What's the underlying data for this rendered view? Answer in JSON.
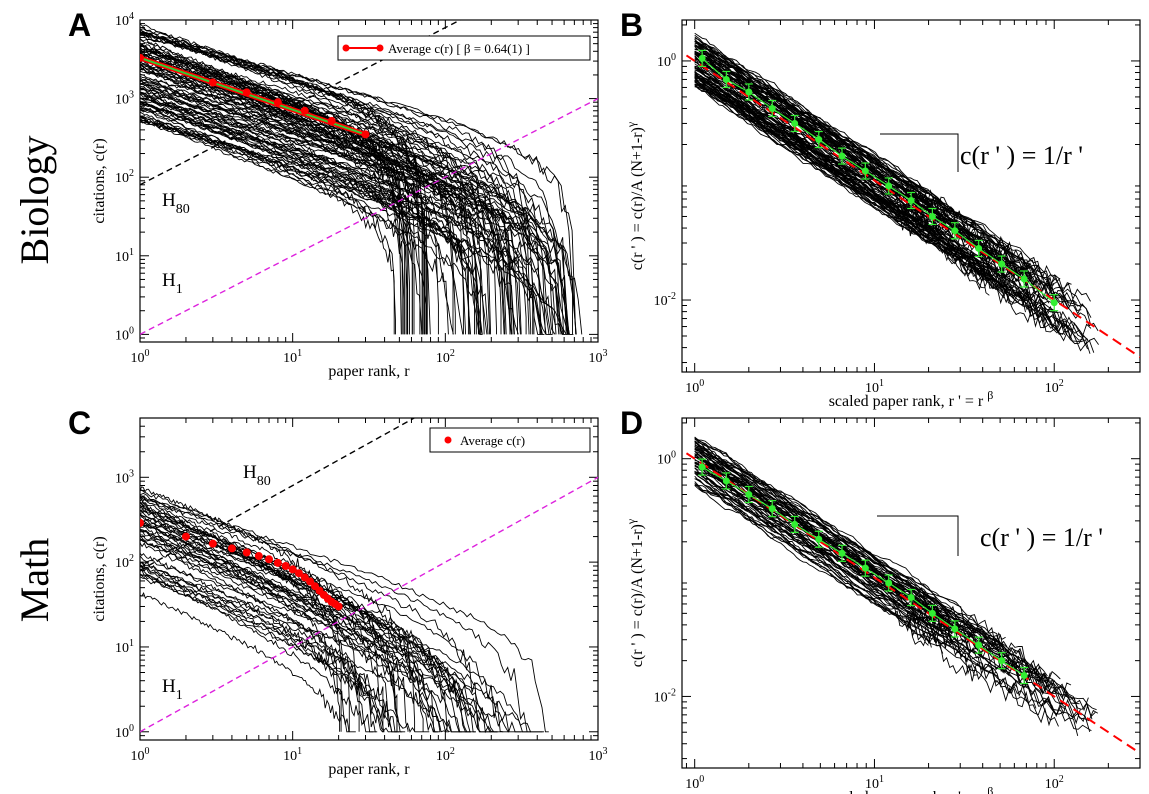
{
  "row_labels": [
    "Biology",
    "Math"
  ],
  "chart_data": [
    {
      "panel": "A",
      "type": "line",
      "xscale": "log",
      "yscale": "log",
      "xlim": [
        1,
        1000
      ],
      "ylim": [
        0.8,
        10000
      ],
      "xticks": [
        1,
        10,
        100,
        1000
      ],
      "yticks": [
        1,
        10,
        100,
        1000,
        10000
      ],
      "xlabel": "paper rank, r",
      "ylabel": "citations, c(r)",
      "legend": "Average c(r)  [ β = 0.64(1) ]",
      "legend_position": "top-right",
      "n_curves": 100,
      "curve_c1_range": [
        500,
        9000
      ],
      "curve_end_rank_range": [
        45,
        800
      ],
      "average_points": {
        "x": [
          1,
          3,
          5,
          8,
          12,
          18,
          30
        ],
        "y": [
          3300,
          1600,
          1200,
          900,
          700,
          520,
          350
        ]
      },
      "fit_line": {
        "x": [
          1,
          30
        ],
        "y": [
          3300,
          350
        ]
      },
      "h_lines": [
        {
          "label": "H",
          "sub": "80",
          "slope": 80
        },
        {
          "label": "H",
          "sub": "1",
          "slope": 1
        }
      ]
    },
    {
      "panel": "B",
      "type": "line",
      "xscale": "log",
      "yscale": "log",
      "xlim": [
        0.85,
        300
      ],
      "ylim": [
        0.0025,
        2.2
      ],
      "xticks": [
        1,
        10,
        100
      ],
      "yticks": [
        1,
        0.01
      ],
      "xlabel": "scaled paper rank, r ' = r ",
      "xlabel_sup": "β",
      "ylabel": "c(r ' ) = c(r)/A (N+1-r)",
      "ylabel_sup": "γ",
      "equation": "c(r ' ) = 1/r '",
      "fit": "c(r') = 1/r'",
      "binned_average": {
        "x": [
          1.1,
          1.5,
          2,
          2.7,
          3.6,
          4.9,
          6.6,
          8.9,
          12,
          16,
          21,
          28,
          38,
          51,
          68,
          100
        ],
        "y": [
          1.05,
          0.7,
          0.55,
          0.4,
          0.3,
          0.22,
          0.16,
          0.12,
          0.09,
          0.068,
          0.05,
          0.038,
          0.027,
          0.02,
          0.015,
          0.0095
        ]
      }
    },
    {
      "panel": "C",
      "type": "line",
      "xscale": "log",
      "yscale": "log",
      "xlim": [
        1,
        1000
      ],
      "ylim": [
        0.8,
        5000
      ],
      "xticks": [
        1,
        10,
        100,
        1000
      ],
      "yticks": [
        1,
        10,
        100,
        1000
      ],
      "xlabel": "paper rank, r",
      "ylabel": "citations, c(r)",
      "legend": "Average c(r)",
      "legend_position": "top-right",
      "n_curves": 50,
      "curve_c1_range": [
        40,
        800
      ],
      "curve_end_rank_range": [
        20,
        480
      ],
      "average_points": {
        "x": [
          1,
          2,
          3,
          4,
          5,
          6,
          7,
          8,
          9,
          10,
          11,
          12,
          13,
          14,
          15,
          16,
          17,
          18,
          19,
          20
        ],
        "y": [
          290,
          200,
          165,
          145,
          130,
          118,
          108,
          98,
          90,
          82,
          74,
          66,
          59,
          52,
          46,
          41,
          37,
          34,
          32,
          30
        ]
      },
      "h_lines": [
        {
          "label": "H",
          "sub": "80",
          "slope": 80
        },
        {
          "label": "H",
          "sub": "1",
          "slope": 1
        }
      ]
    },
    {
      "panel": "D",
      "type": "line",
      "xscale": "log",
      "yscale": "log",
      "xlim": [
        0.85,
        300
      ],
      "ylim": [
        0.0025,
        2.2
      ],
      "xticks": [
        1,
        10,
        100
      ],
      "yticks": [
        1,
        0.01
      ],
      "xlabel": "scaled paper rank, r ' = r ",
      "xlabel_sup": "β",
      "ylabel": "c(r ' ) = c(r)/A (N+1-r)",
      "ylabel_sup": "γ",
      "equation": "c(r ' ) = 1/r '",
      "fit": "c(r') = 1/r'",
      "binned_average": {
        "x": [
          1.1,
          1.5,
          2,
          2.7,
          3.6,
          4.9,
          6.6,
          8.9,
          12,
          16,
          21,
          28,
          38,
          51,
          68
        ],
        "y": [
          0.85,
          0.65,
          0.5,
          0.38,
          0.28,
          0.21,
          0.16,
          0.12,
          0.09,
          0.068,
          0.05,
          0.037,
          0.027,
          0.02,
          0.015
        ]
      }
    }
  ],
  "colors": {
    "curves": "#000000",
    "average": "#ff0000",
    "fit": "#33cc33",
    "h80": "#000000",
    "h1": "#dd22dd",
    "binned": "#33ee33"
  }
}
